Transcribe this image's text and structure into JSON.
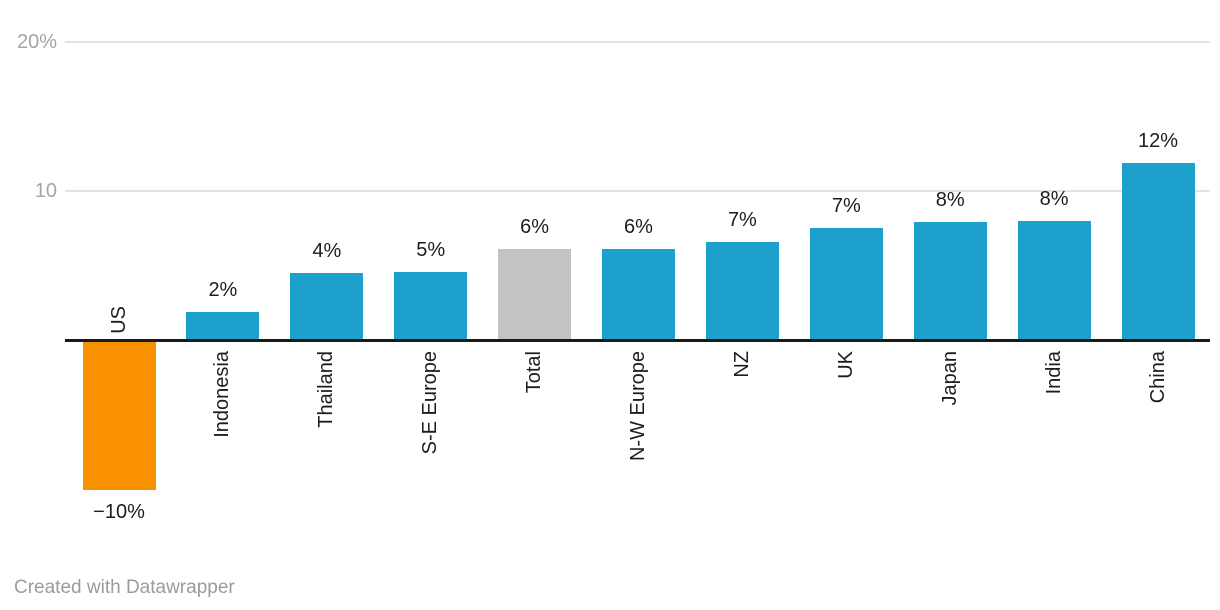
{
  "chart_data": {
    "type": "bar",
    "categories": [
      "US",
      "Indonesia",
      "Thailand",
      "S-E Europe",
      "Total",
      "N-W Europe",
      "NZ",
      "UK",
      "Japan",
      "India",
      "China"
    ],
    "values": [
      -10,
      2,
      4,
      5,
      6,
      6,
      7,
      7,
      8,
      8,
      12
    ],
    "values_precise": [
      -9.9,
      1.8,
      4.4,
      4.5,
      6.0,
      6.0,
      6.5,
      7.4,
      7.8,
      7.9,
      11.8
    ],
    "value_labels": [
      "−10%",
      "2%",
      "4%",
      "5%",
      "6%",
      "6%",
      "7%",
      "7%",
      "8%",
      "8%",
      "12%"
    ],
    "bar_colors": [
      "#f89000",
      "#1ba1cc",
      "#1ba1cc",
      "#1ba1cc",
      "#c3c3c3",
      "#1ba1cc",
      "#1ba1cc",
      "#1ba1cc",
      "#1ba1cc",
      "#1ba1cc",
      "#1ba1cc"
    ],
    "y_ticks": [
      {
        "label": "20%",
        "value": 20
      },
      {
        "label": "10",
        "value": 10
      }
    ],
    "ylim": [
      -10.5,
      21
    ],
    "grid": "horizontal",
    "legend": "none",
    "baseline_value": 0
  },
  "colors": {
    "bar_default": "#1ba1cc",
    "bar_highlight": "#f89000",
    "bar_neutral": "#c3c3c3",
    "axis_line": "#1a1a1a",
    "gridline": "#e3e3e3",
    "tick_text": "#a5a5a5",
    "label_text": "#1d1d1d",
    "attribution_text": "#9b9b9b"
  },
  "footer": {
    "attribution": "Created with Datawrapper"
  }
}
